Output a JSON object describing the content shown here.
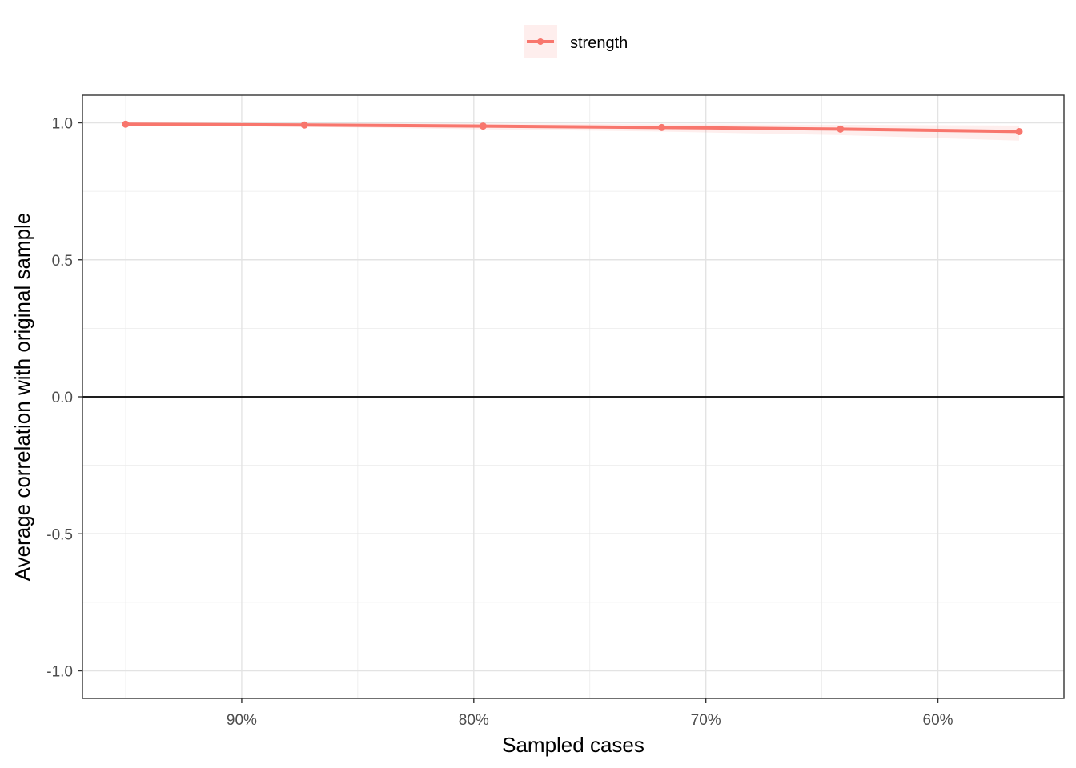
{
  "chart_data": {
    "type": "line",
    "xlabel": "Sampled cases",
    "ylabel": "Average correlation with original sample",
    "x": [
      0.95,
      0.873,
      0.796,
      0.719,
      0.642,
      0.565
    ],
    "x_reversed": true,
    "xlim": [
      0.95,
      0.565
    ],
    "x_ticks": [
      0.9,
      0.8,
      0.7,
      0.6
    ],
    "x_tick_labels": [
      "90%",
      "80%",
      "70%",
      "60%"
    ],
    "ylim": [
      -1.0,
      1.0
    ],
    "y_ticks": [
      1.0,
      0.5,
      0.0,
      -0.5,
      -1.0
    ],
    "y_tick_labels": [
      "1.0",
      "0.5",
      "0.0",
      "-0.5",
      "-1.0"
    ],
    "reference_line_y": 0,
    "grid": true,
    "legend_position": "top",
    "series": [
      {
        "name": "strength",
        "values": [
          0.995,
          0.992,
          0.988,
          0.983,
          0.977,
          0.968
        ],
        "band_lower": [
          0.99,
          0.985,
          0.976,
          0.968,
          0.955,
          0.935
        ],
        "band_upper": [
          0.999,
          0.998,
          0.997,
          0.995,
          0.993,
          0.99
        ],
        "color": "#F8766D"
      }
    ]
  }
}
